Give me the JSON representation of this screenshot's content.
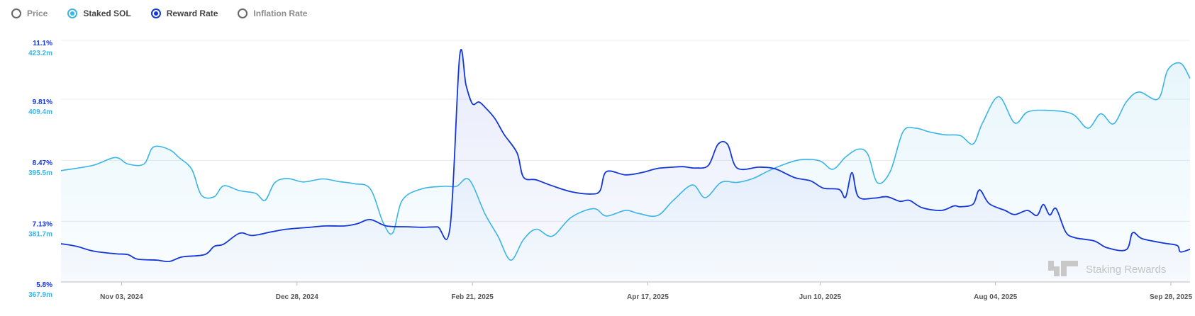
{
  "legend": {
    "items": [
      {
        "label": "Price",
        "selected": false,
        "color": "#6b6b6b"
      },
      {
        "label": "Staked SOL",
        "selected": true,
        "color": "#3bb5e6"
      },
      {
        "label": "Reward Rate",
        "selected": true,
        "color": "#1437d9"
      },
      {
        "label": "Inflation Rate",
        "selected": false,
        "color": "#6b6b6b"
      }
    ]
  },
  "watermark": "Staking Rewards",
  "chart_data": {
    "type": "area",
    "grid": true,
    "x_ticks": [
      "Nov 03, 2024",
      "Dec 28, 2024",
      "Feb 21, 2025",
      "Apr 17, 2025",
      "Jun 10, 2025",
      "Aug 04, 2025",
      "Sep 28, 2025"
    ],
    "y_left_ticks": [
      "11.1%",
      "9.81%",
      "8.47%",
      "7.13%",
      "5.8%"
    ],
    "y_left_values": [
      11.1,
      9.81,
      8.47,
      7.13,
      5.8
    ],
    "y_right_ticks": [
      "423.2m",
      "409.4m",
      "395.5m",
      "381.7m",
      "367.9m"
    ],
    "y_right_values": [
      423.2,
      409.4,
      395.5,
      381.7,
      367.9
    ],
    "x_range": [
      "2024-10-15",
      "2025-10-04"
    ],
    "series": [
      {
        "name": "Staked SOL",
        "unit": "m",
        "color": "#3bb5e6",
        "points": [
          [
            "2024-10-15",
            393.4
          ],
          [
            "2024-10-25",
            394.6
          ],
          [
            "2024-11-01",
            396.4
          ],
          [
            "2024-11-05",
            394.9
          ],
          [
            "2024-11-10",
            394.9
          ],
          [
            "2024-11-13",
            398.8
          ],
          [
            "2024-11-18",
            398.2
          ],
          [
            "2024-11-21",
            396.4
          ],
          [
            "2024-11-25",
            393.7
          ],
          [
            "2024-11-28",
            387.8
          ],
          [
            "2024-12-02",
            387.4
          ],
          [
            "2024-12-05",
            389.9
          ],
          [
            "2024-12-10",
            388.8
          ],
          [
            "2024-12-15",
            388.2
          ],
          [
            "2024-12-18",
            386.6
          ],
          [
            "2024-12-21",
            390.6
          ],
          [
            "2024-12-25",
            391.6
          ],
          [
            "2024-12-30",
            390.8
          ],
          [
            "2025-01-05",
            391.5
          ],
          [
            "2025-01-10",
            390.9
          ],
          [
            "2025-01-15",
            390.4
          ],
          [
            "2025-01-20",
            389.2
          ],
          [
            "2025-01-24",
            381.5
          ],
          [
            "2025-01-27",
            379.1
          ],
          [
            "2025-01-30",
            386.6
          ],
          [
            "2025-02-05",
            389.2
          ],
          [
            "2025-02-12",
            389.8
          ],
          [
            "2025-02-16",
            389.8
          ],
          [
            "2025-02-20",
            391.3
          ],
          [
            "2025-02-25",
            383.4
          ],
          [
            "2025-03-01",
            378.4
          ],
          [
            "2025-03-05",
            372.9
          ],
          [
            "2025-03-09",
            377.6
          ],
          [
            "2025-03-13",
            380.0
          ],
          [
            "2025-03-18",
            378.4
          ],
          [
            "2025-03-24",
            382.7
          ],
          [
            "2025-03-31",
            384.7
          ],
          [
            "2025-04-04",
            383.0
          ],
          [
            "2025-04-10",
            384.3
          ],
          [
            "2025-04-14",
            383.6
          ],
          [
            "2025-04-20",
            383.1
          ],
          [
            "2025-04-25",
            386.6
          ],
          [
            "2025-05-01",
            390.1
          ],
          [
            "2025-05-05",
            387.2
          ],
          [
            "2025-05-10",
            390.7
          ],
          [
            "2025-05-15",
            390.7
          ],
          [
            "2025-05-20",
            391.6
          ],
          [
            "2025-05-25",
            393.4
          ],
          [
            "2025-05-30",
            394.9
          ],
          [
            "2025-06-04",
            395.9
          ],
          [
            "2025-06-10",
            395.6
          ],
          [
            "2025-06-14",
            393.7
          ],
          [
            "2025-06-18",
            396.5
          ],
          [
            "2025-06-22",
            398.3
          ],
          [
            "2025-06-25",
            397.1
          ],
          [
            "2025-06-28",
            390.6
          ],
          [
            "2025-07-02",
            393.2
          ],
          [
            "2025-07-06",
            402.3
          ],
          [
            "2025-07-10",
            403.1
          ],
          [
            "2025-07-14",
            402.3
          ],
          [
            "2025-07-19",
            401.6
          ],
          [
            "2025-07-24",
            401.4
          ],
          [
            "2025-07-28",
            399.5
          ],
          [
            "2025-07-31",
            404.4
          ],
          [
            "2025-08-05",
            410.3
          ],
          [
            "2025-08-10",
            404.3
          ],
          [
            "2025-08-14",
            406.8
          ],
          [
            "2025-08-20",
            407.2
          ],
          [
            "2025-08-28",
            406.4
          ],
          [
            "2025-09-02",
            403.1
          ],
          [
            "2025-09-06",
            406.4
          ],
          [
            "2025-09-10",
            404.1
          ],
          [
            "2025-09-14",
            409.1
          ],
          [
            "2025-09-18",
            411.4
          ],
          [
            "2025-09-24",
            409.8
          ],
          [
            "2025-09-27",
            416.4
          ],
          [
            "2025-10-01",
            418.0
          ],
          [
            "2025-10-04",
            414.5
          ]
        ]
      },
      {
        "name": "Reward Rate",
        "unit": "%",
        "color": "#1437d9",
        "points": [
          [
            "2024-10-15",
            6.64
          ],
          [
            "2024-10-20",
            6.58
          ],
          [
            "2024-10-25",
            6.48
          ],
          [
            "2024-11-01",
            6.42
          ],
          [
            "2024-11-05",
            6.4
          ],
          [
            "2024-11-08",
            6.3
          ],
          [
            "2024-11-14",
            6.28
          ],
          [
            "2024-11-18",
            6.25
          ],
          [
            "2024-11-22",
            6.35
          ],
          [
            "2024-11-29",
            6.4
          ],
          [
            "2024-12-02",
            6.58
          ],
          [
            "2024-12-05",
            6.63
          ],
          [
            "2024-12-10",
            6.87
          ],
          [
            "2024-12-14",
            6.82
          ],
          [
            "2024-12-20",
            6.9
          ],
          [
            "2024-12-25",
            6.96
          ],
          [
            "2025-01-01",
            7.0
          ],
          [
            "2025-01-06",
            7.03
          ],
          [
            "2025-01-12",
            7.03
          ],
          [
            "2025-01-16",
            7.08
          ],
          [
            "2025-01-20",
            7.17
          ],
          [
            "2025-01-25",
            7.03
          ],
          [
            "2025-02-01",
            7.01
          ],
          [
            "2025-02-05",
            7.0
          ],
          [
            "2025-02-10",
            7.01
          ],
          [
            "2025-02-14",
            7.01
          ],
          [
            "2025-02-17",
            10.75
          ],
          [
            "2025-02-19",
            10.12
          ],
          [
            "2025-02-21",
            9.71
          ],
          [
            "2025-02-23",
            9.75
          ],
          [
            "2025-02-25",
            9.63
          ],
          [
            "2025-02-28",
            9.39
          ],
          [
            "2025-03-03",
            9.03
          ],
          [
            "2025-03-07",
            8.63
          ],
          [
            "2025-03-09",
            8.1
          ],
          [
            "2025-03-13",
            8.04
          ],
          [
            "2025-03-18",
            7.91
          ],
          [
            "2025-03-24",
            7.78
          ],
          [
            "2025-03-30",
            7.73
          ],
          [
            "2025-04-02",
            7.8
          ],
          [
            "2025-04-04",
            8.22
          ],
          [
            "2025-04-10",
            8.15
          ],
          [
            "2025-04-15",
            8.2
          ],
          [
            "2025-04-20",
            8.29
          ],
          [
            "2025-04-25",
            8.32
          ],
          [
            "2025-04-28",
            8.33
          ],
          [
            "2025-05-02",
            8.3
          ],
          [
            "2025-05-06",
            8.36
          ],
          [
            "2025-05-09",
            8.82
          ],
          [
            "2025-05-12",
            8.82
          ],
          [
            "2025-05-15",
            8.3
          ],
          [
            "2025-05-22",
            8.32
          ],
          [
            "2025-05-27",
            8.28
          ],
          [
            "2025-06-02",
            8.09
          ],
          [
            "2025-06-07",
            8.02
          ],
          [
            "2025-06-11",
            7.86
          ],
          [
            "2025-06-16",
            7.83
          ],
          [
            "2025-06-18",
            7.66
          ],
          [
            "2025-06-20",
            8.2
          ],
          [
            "2025-06-22",
            7.67
          ],
          [
            "2025-06-27",
            7.64
          ],
          [
            "2025-07-01",
            7.67
          ],
          [
            "2025-07-05",
            7.57
          ],
          [
            "2025-07-08",
            7.59
          ],
          [
            "2025-07-12",
            7.43
          ],
          [
            "2025-07-18",
            7.37
          ],
          [
            "2025-07-22",
            7.47
          ],
          [
            "2025-07-24",
            7.45
          ],
          [
            "2025-07-28",
            7.51
          ],
          [
            "2025-07-30",
            7.82
          ],
          [
            "2025-08-02",
            7.52
          ],
          [
            "2025-08-07",
            7.37
          ],
          [
            "2025-08-10",
            7.28
          ],
          [
            "2025-08-14",
            7.37
          ],
          [
            "2025-08-17",
            7.26
          ],
          [
            "2025-08-19",
            7.5
          ],
          [
            "2025-08-21",
            7.27
          ],
          [
            "2025-08-23",
            7.41
          ],
          [
            "2025-08-26",
            6.9
          ],
          [
            "2025-08-29",
            6.77
          ],
          [
            "2025-09-04",
            6.7
          ],
          [
            "2025-09-08",
            6.55
          ],
          [
            "2025-09-14",
            6.51
          ],
          [
            "2025-09-16",
            6.88
          ],
          [
            "2025-09-19",
            6.75
          ],
          [
            "2025-09-26",
            6.65
          ],
          [
            "2025-09-30",
            6.6
          ],
          [
            "2025-10-01",
            6.46
          ],
          [
            "2025-10-04",
            6.52
          ]
        ]
      }
    ]
  }
}
